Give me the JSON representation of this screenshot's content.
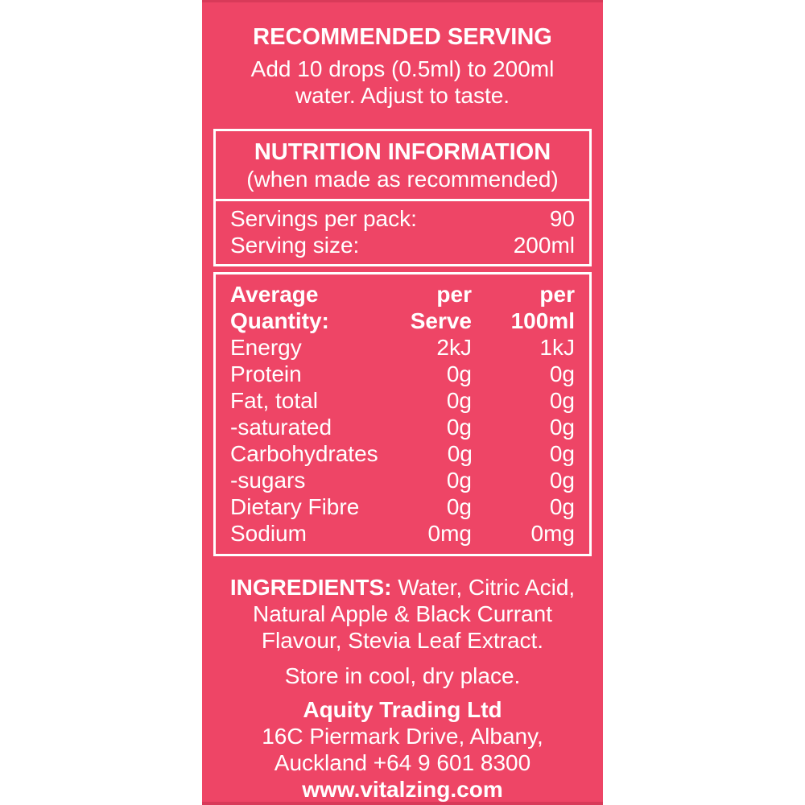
{
  "colors": {
    "label_background": "#ee4566",
    "label_edge_shade": "#d83a59",
    "text_and_borders": "#ffffff"
  },
  "recommended_serving": {
    "title": "RECOMMENDED SERVING",
    "line1": "Add 10 drops (0.5ml) to 200ml",
    "line2": "water. Adjust to taste."
  },
  "nutrition_box": {
    "title": "NUTRITION INFORMATION",
    "subtitle": "(when made as recommended)",
    "servings_per_pack_label": "Servings per pack:",
    "servings_per_pack_value": "90",
    "serving_size_label": "Serving size:",
    "serving_size_value": "200ml"
  },
  "nutrition_table": {
    "header": {
      "col1_line1": "Average",
      "col1_line2": "Quantity:",
      "col2_line1": "per",
      "col2_line2": "Serve",
      "col3_line1": "per",
      "col3_line2": "100ml"
    },
    "rows": [
      {
        "name": "Energy",
        "per_serve": "2kJ",
        "per_100ml": "1kJ"
      },
      {
        "name": "Protein",
        "per_serve": "0g",
        "per_100ml": "0g"
      },
      {
        "name": "Fat, total",
        "per_serve": "0g",
        "per_100ml": "0g"
      },
      {
        "name": "-saturated",
        "per_serve": "0g",
        "per_100ml": "0g"
      },
      {
        "name": "Carbohydrates",
        "per_serve": "0g",
        "per_100ml": "0g"
      },
      {
        "name": "-sugars",
        "per_serve": "0g",
        "per_100ml": "0g"
      },
      {
        "name": "Dietary Fibre",
        "per_serve": "0g",
        "per_100ml": "0g"
      },
      {
        "name": "Sodium",
        "per_serve": "0mg",
        "per_100ml": "0mg"
      }
    ]
  },
  "ingredients": {
    "label": "INGREDIENTS:",
    "rest_line1": " Water, Citric Acid,",
    "line2": "Natural Apple & Black Currant",
    "line3": "Flavour, Stevia Leaf Extract."
  },
  "storage": "Store in cool, dry place.",
  "distributor": {
    "name": "Aquity Trading Ltd",
    "address_line1": "16C Piermark Drive, Albany,",
    "address_line2": "Auckland +64 9 601 8300",
    "website": "www.vitalzing.com"
  }
}
